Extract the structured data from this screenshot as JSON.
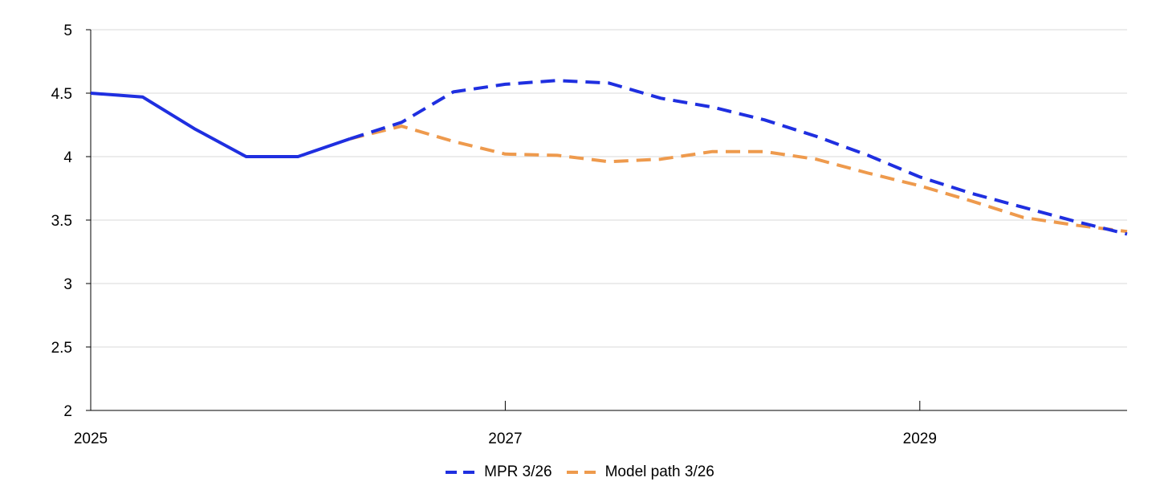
{
  "chart_data": {
    "type": "line",
    "title": "",
    "xlabel": "",
    "ylabel": "",
    "xlim": [
      2025,
      2030.0
    ],
    "ylim": [
      2,
      5
    ],
    "yticks": [
      2,
      2.5,
      3,
      3.5,
      4,
      4.5,
      5
    ],
    "ytick_labels": [
      "2",
      "2.5",
      "3",
      "3.5",
      "4",
      "4.5",
      "5"
    ],
    "xticks": [
      2025,
      2027,
      2029
    ],
    "xtick_labels": [
      "2025",
      "2027",
      "2029"
    ],
    "grid": "horizontal",
    "legend_position": "bottom-center",
    "history": {
      "color": "#1f2fe0",
      "x": [
        2025.0,
        2025.25,
        2025.5,
        2025.75,
        2026.0,
        2026.25
      ],
      "y": [
        4.5,
        4.47,
        4.22,
        4.0,
        4.0,
        4.14
      ]
    },
    "series": [
      {
        "name": "MPR 3/26",
        "color": "#1f2fe0",
        "x": [
          2026.25,
          2026.5,
          2026.75,
          2027.0,
          2027.25,
          2027.5,
          2027.75,
          2028.0,
          2028.25,
          2028.5,
          2028.75,
          2029.0,
          2029.25,
          2029.5,
          2029.75,
          2030.0
        ],
        "y": [
          4.14,
          4.27,
          4.51,
          4.57,
          4.6,
          4.58,
          4.46,
          4.39,
          4.29,
          4.16,
          4.01,
          3.84,
          3.71,
          3.6,
          3.49,
          3.39
        ]
      },
      {
        "name": "Model path 3/26",
        "color": "#ee9a4d",
        "x": [
          2026.25,
          2026.5,
          2026.75,
          2027.0,
          2027.25,
          2027.5,
          2027.75,
          2028.0,
          2028.25,
          2028.5,
          2028.75,
          2029.0,
          2029.25,
          2029.5,
          2029.75,
          2030.0
        ],
        "y": [
          4.14,
          4.24,
          4.12,
          4.02,
          4.01,
          3.96,
          3.98,
          4.04,
          4.04,
          3.98,
          3.87,
          3.77,
          3.65,
          3.52,
          3.46,
          3.41
        ]
      }
    ]
  }
}
